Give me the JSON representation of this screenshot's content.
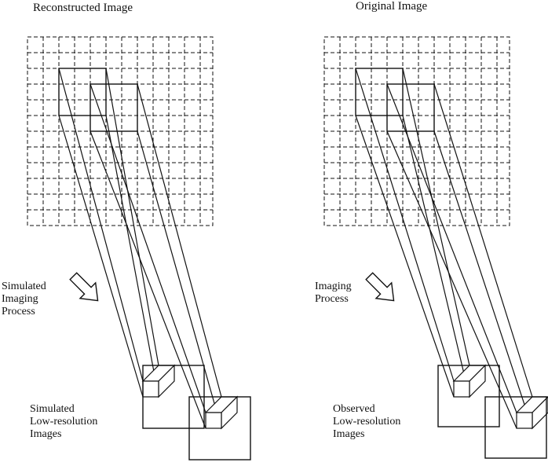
{
  "panels": [
    {
      "title": "Reconstructed Image",
      "process_label": [
        "Simulated",
        "Imaging",
        "Process"
      ],
      "output_label": [
        "Simulated",
        "Low-resolution",
        "Images"
      ]
    },
    {
      "title": "Original Image",
      "process_label": [
        "Imaging",
        "Process"
      ],
      "output_label": [
        "Observed",
        "Low-resolution",
        "Images"
      ]
    }
  ],
  "colors": {
    "ink": "#111111",
    "background": "#ffffff"
  },
  "icons": {
    "process_arrow": "hollow-arrow-icon"
  }
}
